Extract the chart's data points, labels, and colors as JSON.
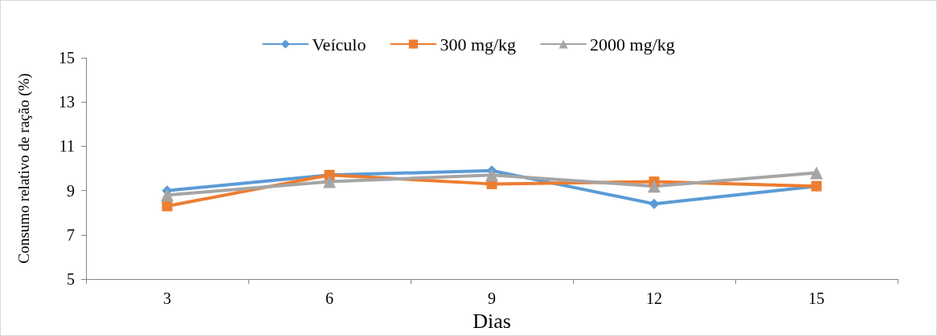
{
  "chart_data": {
    "type": "line",
    "xlabel": "Dias",
    "ylabel": "Consumo relativo de ração (%)",
    "categories": [
      "3",
      "6",
      "9",
      "12",
      "15"
    ],
    "series": [
      {
        "name": "Veículo",
        "color": "#5b9bd5",
        "marker": "diamond",
        "values": [
          9.0,
          9.7,
          9.9,
          8.4,
          9.2
        ]
      },
      {
        "name": "300 mg/kg",
        "color": "#ed7d31",
        "marker": "square",
        "values": [
          8.3,
          9.7,
          9.3,
          9.4,
          9.2
        ]
      },
      {
        "name": "2000 mg/kg",
        "color": "#a5a5a5",
        "marker": "triangle",
        "values": [
          8.8,
          9.4,
          9.7,
          9.2,
          9.8
        ]
      }
    ],
    "ylim": [
      5,
      15
    ],
    "yticks": [
      5,
      7,
      9,
      11,
      13,
      15
    ],
    "grid": false,
    "legend": "top",
    "line_style": "solid"
  }
}
